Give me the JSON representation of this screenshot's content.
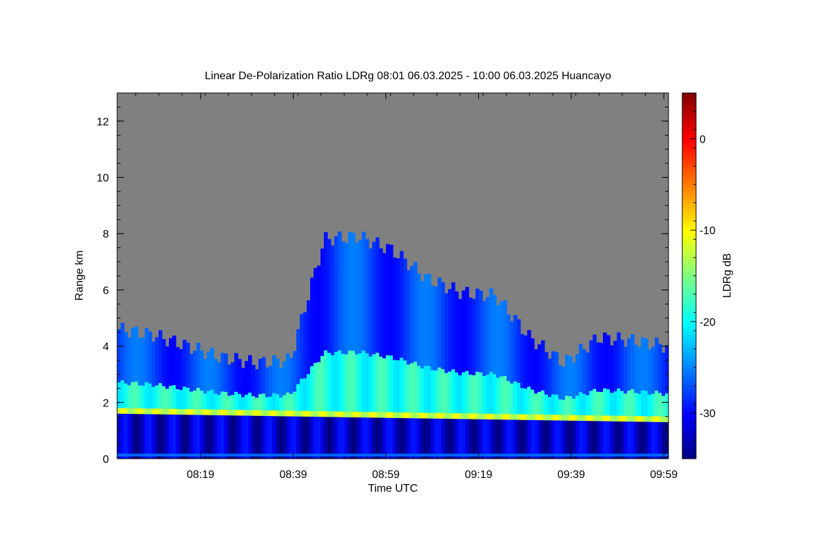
{
  "chart_data": {
    "type": "heatmap",
    "title": "Linear De-Polarization Ratio LDRg   08:01 06.03.2025 - 10:00 06.03.2025 Huancayo",
    "xlabel": "Time UTC",
    "ylabel": "Range km",
    "x_ticks": [
      "08:19",
      "08:39",
      "08:59",
      "09:19",
      "09:39",
      "09:59"
    ],
    "x_tick_minutes": [
      19,
      39,
      59,
      79,
      99,
      119
    ],
    "x_range_minutes": [
      1,
      120
    ],
    "y_ticks": [
      0,
      2,
      4,
      6,
      8,
      10,
      12
    ],
    "ylim": [
      0,
      13
    ],
    "colorbar": {
      "label": "LDRg dB",
      "ticks": [
        0,
        -10,
        -20,
        -30
      ],
      "range": [
        -35,
        5
      ],
      "colormap": "jet"
    },
    "no_data_color": "#808080",
    "layers": {
      "surface_band_top_km": 0.3,
      "surface_layer_ldr_db": -32,
      "melting_layer": {
        "name": "strong depolarization layer",
        "height_km_start": 1.7,
        "height_km_end": 1.4,
        "ldr_db": -12
      },
      "cloud_top_km": [
        4.6,
        4.4,
        4.0,
        3.6,
        3.4,
        3.5,
        7.8,
        7.9,
        7.4,
        6.4,
        5.9,
        5.8,
        4.3,
        3.4,
        4.3,
        4.2,
        4.0
      ],
      "cloud_ldr_db_range": [
        -30,
        -19
      ]
    }
  }
}
